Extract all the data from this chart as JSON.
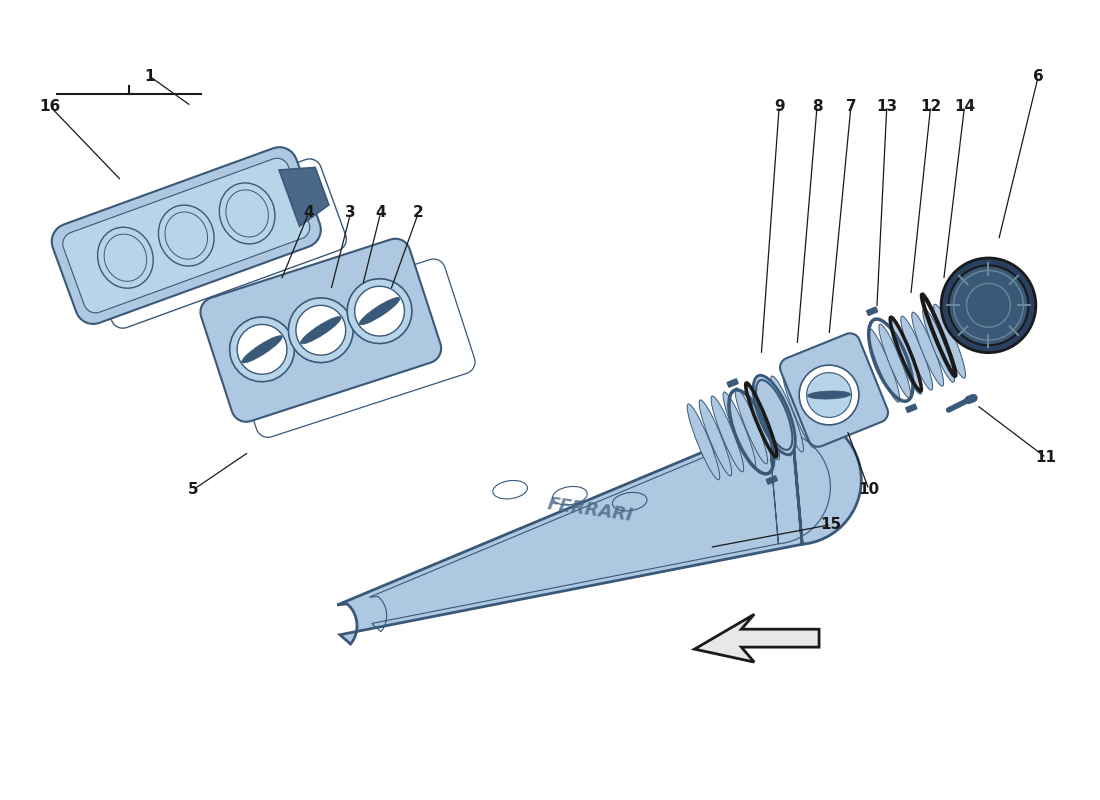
{
  "bg_color": "#ffffff",
  "parts_color": "#adc8e0",
  "parts_color2": "#b8d4e8",
  "edge_color": "#3a5878",
  "dark_color": "#4a6888",
  "darker_color": "#2a4060",
  "gasket_color": "#c8dce8",
  "line_color": "#1a1a1a",
  "arrow_fill": "#e8e8e8",
  "fig_width": 11.0,
  "fig_height": 8.0
}
